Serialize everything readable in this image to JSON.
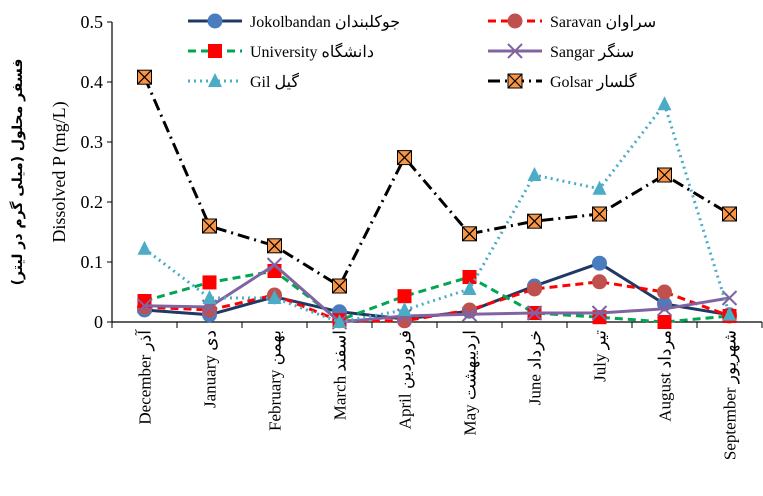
{
  "chart_data": {
    "type": "line",
    "ylabel": "Dissolved P (mg/L)",
    "ylabel_fa": "فسفر محلول (میلی گرم در لیتر)",
    "ylim": [
      0,
      0.5
    ],
    "yticks": [
      "0",
      "0.1",
      "0.2",
      "0.3",
      "0.4",
      "0.5"
    ],
    "grid": false,
    "legend_placement": "top",
    "categories": [
      "December آذر",
      "January دی",
      "February بهمن",
      "March اسفند",
      "April فروردین",
      "May اردیبهشت",
      "June خرداد",
      "July تیر",
      "August مرداد",
      "September شهریور"
    ],
    "series": [
      {
        "name": "Jokolbandan جوکلبندان",
        "color": "#1f3864",
        "line": "solid",
        "marker": "circle",
        "marker_color": "#4a7dbf",
        "values": [
          0.02,
          0.012,
          0.042,
          0.017,
          0.005,
          0.018,
          0.06,
          0.098,
          0.03,
          0.012
        ]
      },
      {
        "name": "Saravan سراوان",
        "color": "#ff0000",
        "line": "dash",
        "marker": "circle",
        "marker_color": "#c0504d",
        "values": [
          0.025,
          0.02,
          0.045,
          0.002,
          0.002,
          0.02,
          0.055,
          0.067,
          0.05,
          0.01
        ]
      },
      {
        "name": "University دانشگاه",
        "color": "#00a651",
        "line": "dash",
        "marker": "square",
        "marker_color": "#ff0000",
        "values": [
          0.035,
          0.066,
          0.085,
          0.003,
          0.043,
          0.075,
          0.015,
          0.008,
          0.0,
          0.01
        ]
      },
      {
        "name": "Sangar سنگر",
        "color": "#8064a2",
        "line": "solid",
        "marker": "x",
        "marker_color": "#8064a2",
        "values": [
          0.027,
          0.025,
          0.095,
          0.0,
          0.01,
          0.013,
          0.015,
          0.015,
          0.022,
          0.04
        ]
      },
      {
        "name": "Gil گیل",
        "color": "#4bacc6",
        "line": "dot",
        "marker": "triangle",
        "marker_color": "#4bacc6",
        "values": [
          0.122,
          0.04,
          0.04,
          0.0,
          0.02,
          0.055,
          0.245,
          0.222,
          0.363,
          0.012
        ]
      },
      {
        "name": "Golsar گلسار",
        "color": "#000000",
        "line": "dashdot",
        "marker": "xsquare",
        "marker_color": "#f79646",
        "values": [
          0.408,
          0.16,
          0.127,
          0.06,
          0.274,
          0.147,
          0.168,
          0.18,
          0.245,
          0.18
        ]
      }
    ]
  }
}
